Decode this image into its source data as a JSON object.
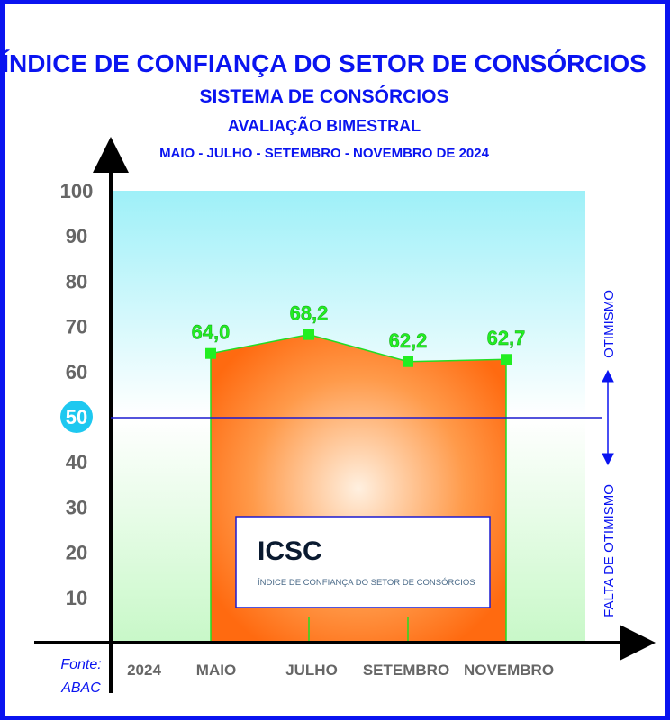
{
  "titles": [
    "ÍNDICE DE CONFIANÇA DO SETOR DE CONSÓRCIOS",
    "SISTEMA DE CONSÓRCIOS",
    "AVALIAÇÃO BIMESTRAL",
    "MAIO - JULHO - SETEMBRO - NOVEMBRO DE 2024"
  ],
  "source": [
    "Fonte:",
    "ABAC"
  ],
  "right_labels": {
    "top": "OTIMISMO",
    "bottom": "FALTA DE OTIMISMO"
  },
  "logo": {
    "title": "ICSC",
    "subtitle": "ÍNDICE DE CONFIANÇA DO SETOR DE CONSÓRCIOS"
  },
  "colors": {
    "title": "#0a14f0",
    "value_labels": "#22ee22",
    "area": "#ff7a1a",
    "reference_line": "#1a1ad0",
    "highlight_circle": "#1ec8f0"
  },
  "chart_data": {
    "type": "area",
    "categories": [
      "MAIO",
      "JULHO",
      "SETEMBRO",
      "NOVEMBRO"
    ],
    "year_label": "2024",
    "values": [
      64.0,
      68.2,
      62.2,
      62.7
    ],
    "value_labels": [
      "64,0",
      "68,2",
      "62,2",
      "62,7"
    ],
    "yticks": [
      10,
      20,
      30,
      40,
      50,
      60,
      70,
      80,
      90,
      100
    ],
    "ylim": [
      0,
      100
    ],
    "reference_line": 50,
    "grid": false
  }
}
